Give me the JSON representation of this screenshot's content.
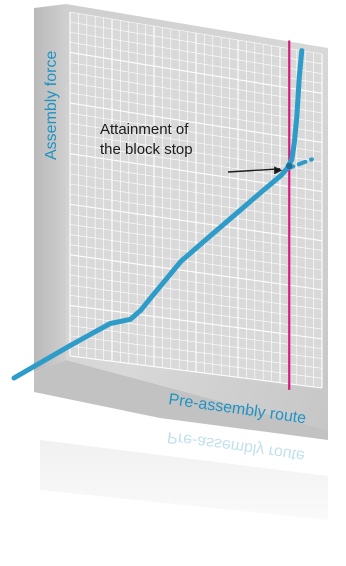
{
  "chart_data": {
    "type": "line",
    "title": "",
    "xlabel": "Pre-assembly route",
    "ylabel": "Assembly force",
    "xlim": [
      0,
      100
    ],
    "ylim": [
      0,
      100
    ],
    "grid": true,
    "series": [
      {
        "x": [
          0,
          4,
          8,
          12,
          16,
          20,
          24,
          28,
          32,
          36,
          40,
          44,
          48,
          52,
          56,
          60,
          64,
          68,
          72,
          76,
          80,
          84,
          86,
          88,
          89,
          90,
          91,
          92
        ],
        "y": [
          3,
          5,
          7,
          9,
          11,
          12,
          13,
          16,
          20,
          24,
          28,
          32,
          35,
          38,
          41,
          44,
          47,
          50,
          53,
          56,
          59,
          62,
          64,
          67,
          72,
          80,
          92,
          100
        ]
      }
    ],
    "extrapolation": {
      "style": "dashed",
      "x": [
        86,
        96
      ],
      "y": [
        64,
        68
      ]
    },
    "vertical_line": {
      "x": 87,
      "color": "#d3197a"
    },
    "marker_point": {
      "x": 87,
      "y": 65
    },
    "annotations": [
      {
        "text_lines": [
          "Attainment of",
          "the block stop"
        ],
        "points_to": {
          "x": 85,
          "y": 63
        }
      }
    ],
    "colors": {
      "series": "#2d9cc9",
      "axis_text": "#1f93c3",
      "vertical_line": "#d3197a",
      "grid": "#ffffff",
      "panel_background": "#d4d4d4"
    }
  }
}
